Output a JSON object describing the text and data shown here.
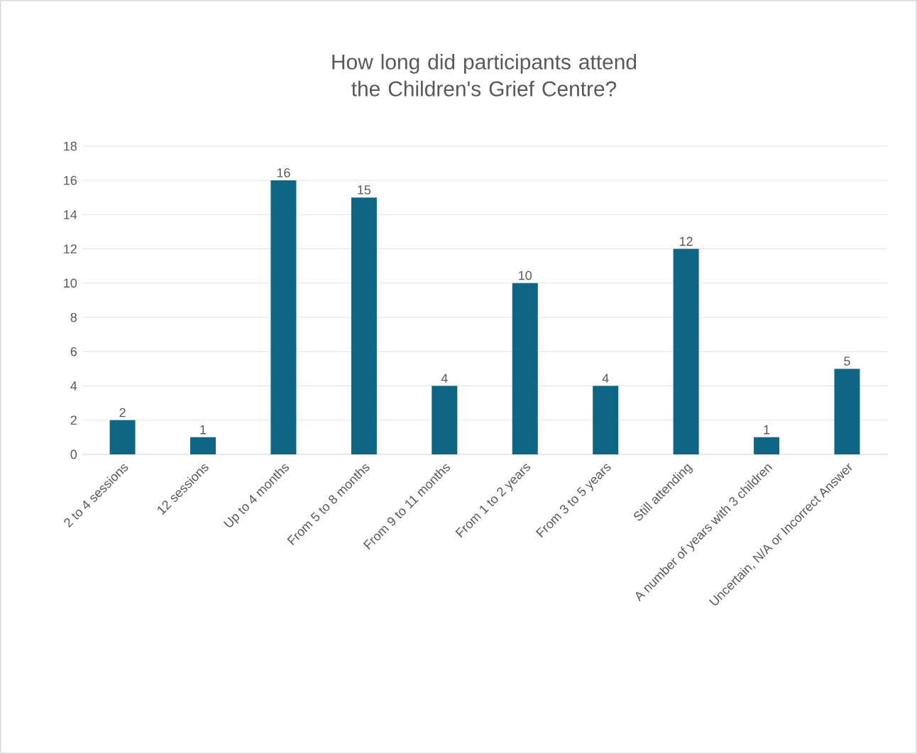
{
  "chart_data": {
    "type": "bar",
    "title": "How long did participants attend the Children's Grief Centre?",
    "categories": [
      "2 to 4 sessions",
      "12 sessions",
      "Up to 4 months",
      "From 5 to 8 months",
      "From 9 to 11 months",
      "From 1 to 2 years",
      "From 3 to 5 years",
      "Still attending",
      "A number of years with 3 children",
      "Uncertain, N/A or Incorrect Answer"
    ],
    "values": [
      2,
      1,
      16,
      15,
      4,
      10,
      4,
      12,
      1,
      5
    ],
    "color": "#0e6584",
    "ylim": [
      0,
      18
    ],
    "yticks": [
      0,
      2,
      4,
      6,
      8,
      10,
      12,
      14,
      16,
      18
    ],
    "grid": "y",
    "data_labels": true
  }
}
